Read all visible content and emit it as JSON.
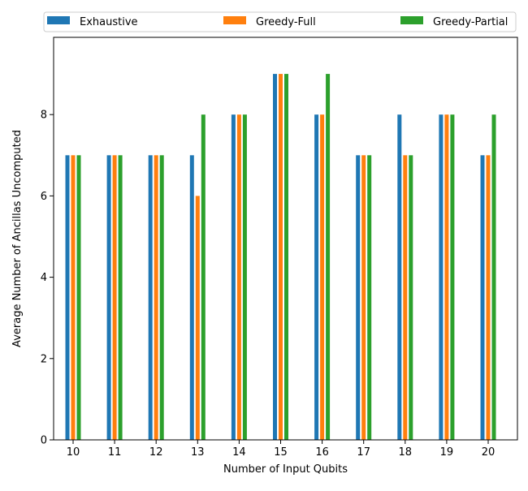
{
  "chart_data": {
    "type": "bar",
    "title": "",
    "xlabel": "Number of Input Qubits",
    "ylabel": "Average Number of Ancillas Uncomputed",
    "categories": [
      "10",
      "11",
      "12",
      "13",
      "14",
      "15",
      "16",
      "17",
      "18",
      "19",
      "20"
    ],
    "ylim": [
      0,
      9.9
    ],
    "yticks": [
      0,
      2,
      4,
      6,
      8
    ],
    "grid": false,
    "legend_position": "top",
    "series": [
      {
        "name": "Exhaustive",
        "color": "#1f77b4",
        "values": [
          7,
          7,
          7,
          7,
          8,
          9,
          8,
          7,
          8,
          8,
          7
        ]
      },
      {
        "name": "Greedy-Full",
        "color": "#ff7f0e",
        "values": [
          7,
          7,
          7,
          6,
          8,
          9,
          8,
          7,
          7,
          8,
          7
        ]
      },
      {
        "name": "Greedy-Partial",
        "color": "#2ca02c",
        "values": [
          7,
          7,
          7,
          8,
          8,
          9,
          9,
          7,
          7,
          8,
          8
        ]
      }
    ]
  }
}
